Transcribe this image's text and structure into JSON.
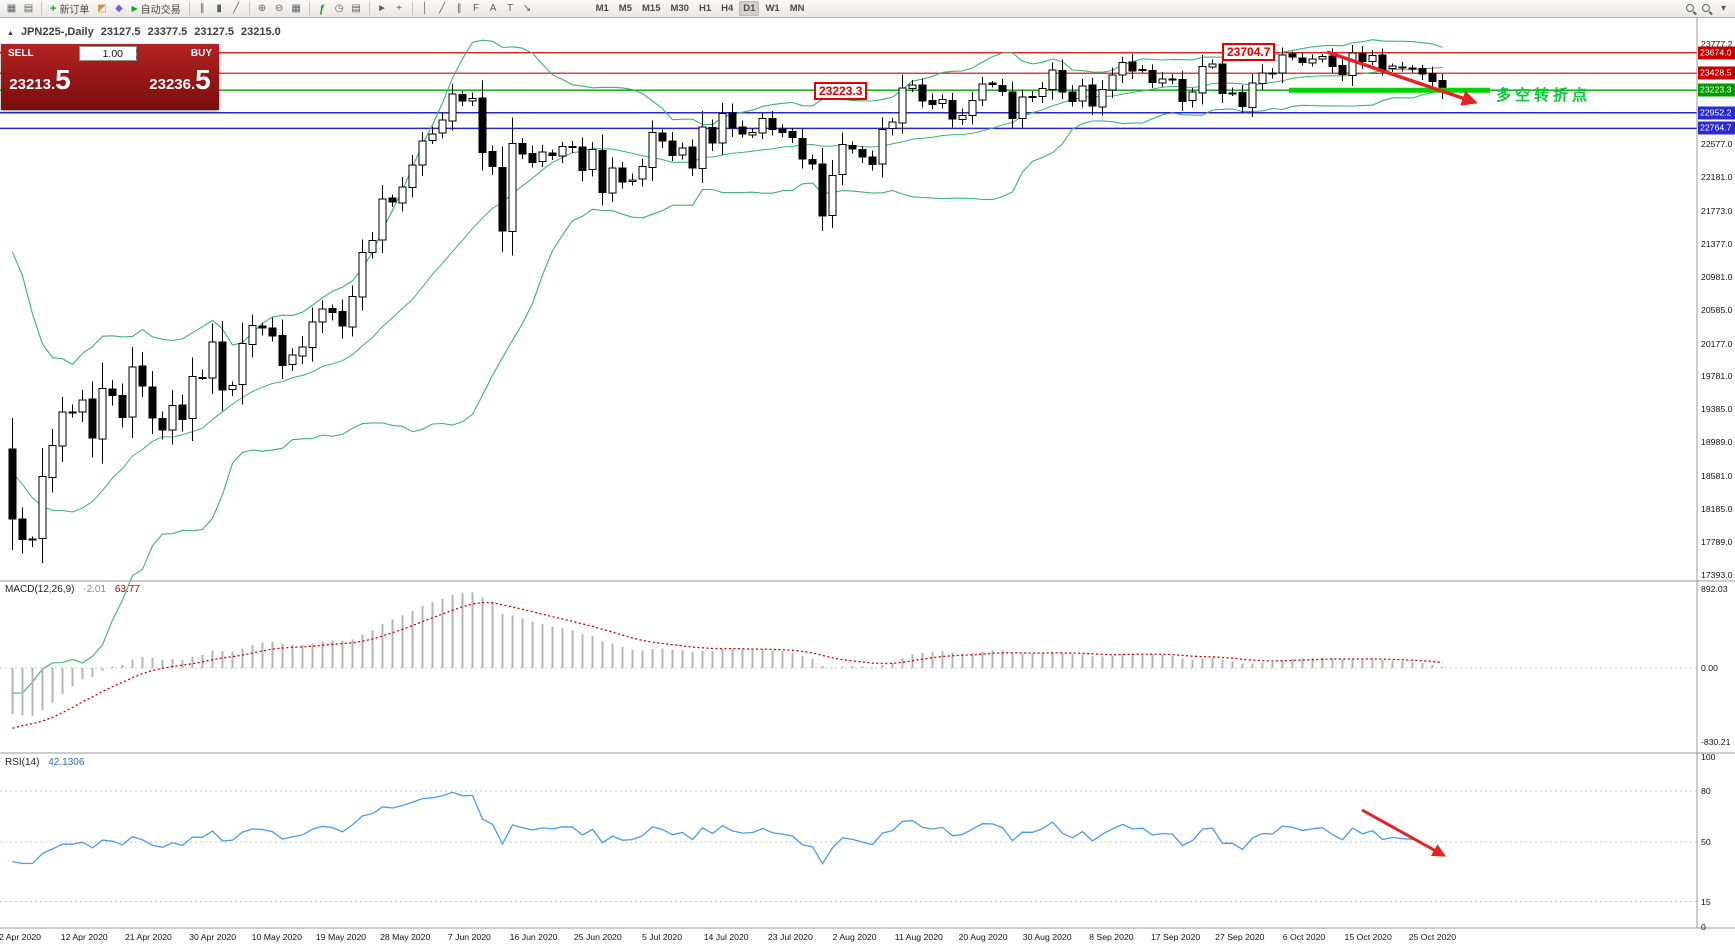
{
  "icons": {
    "new_chart": "▦",
    "profiles": "▤",
    "dropdown": "▾",
    "new_order_plus": "+",
    "alerts": "◩",
    "mql": "◆",
    "autotrade_play": "▶",
    "bar_chart": "∥",
    "candlestick": "▮",
    "line_chart": "╱",
    "zoom_in": "⊕",
    "zoom_out": "⊖",
    "tile_windows": "▦",
    "indicators": "ƒ",
    "period": "◷",
    "templates": "▤",
    "cursor": "►",
    "crosshair": "+",
    "vline": "│",
    "trendline": "╱",
    "channel": "∥",
    "fibonacci": "F",
    "text": "A",
    "label": "T",
    "arrows": "↘",
    "header_marker": "▲",
    "stepper_up": "▴",
    "stepper_down": "▾"
  },
  "toolbar": {
    "new_order_label": "新订单",
    "autotrade_label": "自动交易",
    "timeframes": [
      "M1",
      "M5",
      "M15",
      "M30",
      "H1",
      "H4",
      "D1",
      "W1",
      "MN"
    ],
    "active_timeframe": "D1"
  },
  "chart_header": {
    "symbol_period": "JPN225-,Daily",
    "open": "23127.5",
    "high": "23377.5",
    "low": "23127.5",
    "close": "23215.0"
  },
  "trade_panel": {
    "sell_label": "SELL",
    "buy_label": "BUY",
    "volume": "1.00",
    "sell_price": "23213.",
    "sell_price_big": "5",
    "buy_price": "23236.",
    "buy_price_big": "5"
  },
  "price_axis": {
    "ticks": [
      "23777.2",
      "22577.0",
      "22181.0",
      "21773.0",
      "21377.0",
      "20981.0",
      "20585.0",
      "20177.0",
      "19781.0",
      "19385.0",
      "18989.0",
      "18581.0",
      "18185.0",
      "17789.0",
      "17393.0"
    ],
    "badges": [
      {
        "label": "23674.0",
        "color": "#c40000"
      },
      {
        "label": "23428.5",
        "color": "#c40000"
      },
      {
        "label": "23223.3",
        "color": "#009a00"
      },
      {
        "label": "22952.2",
        "color": "#2a2ad0"
      },
      {
        "label": "22764.7",
        "color": "#2a2ad0"
      }
    ]
  },
  "macd_panel": {
    "name": "MACD(12,26,9)",
    "value_main": "-2.01",
    "value_signal": "63.77",
    "axis": [
      "892.03",
      "0.00",
      "-830.21"
    ]
  },
  "rsi_panel": {
    "name": "RSI(14)",
    "value": "42.1306",
    "axis": [
      "100",
      "80",
      "50",
      "15",
      "0"
    ],
    "levels": [
      80,
      50,
      15
    ]
  },
  "annotations": {
    "resistance_label": "23704.7",
    "support_label": "23223.3",
    "turning_point_text": "多空转折点"
  },
  "colors": {
    "up_candle": "#ffffff",
    "down_candle": "#000000",
    "candle_outline": "#000000",
    "bollinger": "#3CB371",
    "macd_histogram": "#b4b4b4",
    "macd_signal": "#d40000",
    "rsi_line": "#4a9ce8",
    "arrow_red": "#e82222",
    "turning_segment_green": "#00d400",
    "hline_red": "#d40000",
    "hline_green": "#00a000",
    "hline_blue": "#2626cc"
  },
  "chart_data": {
    "type": "candlestick",
    "symbol": "JPN225-",
    "period": "Daily",
    "current_bar": {
      "open": 23127.5,
      "high": 23377.5,
      "low": 23127.5,
      "close": 23215.0
    },
    "bid": 23213.5,
    "ask": 23236.5,
    "price_range_top": 24092,
    "price_range_bottom": 17321,
    "prehistory_closes": [
      21143,
      20749,
      20618,
      21103,
      20613,
      19868,
      19416,
      19698,
      18560,
      17431,
      17002,
      16553,
      17011,
      16888,
      18092,
      17334,
      18003,
      19546,
      18664,
      19085,
      18917
    ],
    "closes": [
      18065,
      17818,
      17820,
      18576,
      18950,
      19353,
      19346,
      19499,
      19043,
      19639,
      19551,
      19290,
      19897,
      19669,
      19281,
      19138,
      19429,
      19262,
      19783,
      19771,
      20194,
      19619,
      19675,
      20179,
      20391,
      20366,
      20267,
      19915,
      20037,
      20134,
      20433,
      20595,
      20552,
      20388,
      20741,
      21271,
      21419,
      21916,
      21878,
      22062,
      22326,
      22614,
      22696,
      22864,
      23178,
      23091,
      23125,
      22473,
      22305,
      21531,
      22582,
      22456,
      22355,
      22479,
      22437,
      22549,
      22534,
      22260,
      22512,
      21995,
      22288,
      22122,
      22146,
      22306,
      22714,
      22615,
      22439,
      22529,
      22291,
      22784,
      22587,
      22946,
      22770,
      22696,
      22717,
      22884,
      22751,
      22715,
      22657,
      22397,
      22339,
      21710,
      22195,
      22573,
      22514,
      22418,
      22330,
      22750,
      22843,
      23249,
      23289,
      23096,
      23051,
      23110,
      22880,
      22920,
      23100,
      23296,
      23290,
      23208,
      22882,
      23139,
      23138,
      23247,
      23465,
      23205,
      23089,
      23274,
      23032,
      23235,
      23406,
      23559,
      23454,
      23475,
      23319,
      23360,
      23346,
      23087,
      23204,
      23511,
      23539,
      23185,
      23185,
      23030,
      23312,
      23433,
      23423,
      23647,
      23620,
      23559,
      23601,
      23627,
      23507,
      23411,
      23671,
      23567,
      23639,
      23474,
      23516,
      23494,
      23485,
      23418,
      23331,
      23215
    ],
    "overlays": [
      {
        "type": "bollinger_bands",
        "period": 20,
        "deviation": 2
      }
    ],
    "indicators": [
      {
        "type": "MACD",
        "fast": 12,
        "slow": 26,
        "signal": 9,
        "main_value": -2.01,
        "signal_value": 63.77
      },
      {
        "type": "RSI",
        "period": 14,
        "value": 42.1306
      }
    ],
    "hlines": [
      {
        "price": 23674.0,
        "color": "#d40000",
        "width": 1.2
      },
      {
        "price": 23428.5,
        "color": "#d40000",
        "width": 1.2
      },
      {
        "price": 23223.3,
        "color": "#00a000",
        "width": 1.4
      },
      {
        "price": 22952.2,
        "color": "#2626cc",
        "width": 1.5
      },
      {
        "price": 22764.7,
        "color": "#2626cc",
        "width": 1.5
      }
    ],
    "date_labels": [
      "2 Apr 2020",
      "12 Apr 2020",
      "21 Apr 2020",
      "30 Apr 2020",
      "10 May 2020",
      "19 May 2020",
      "28 May 2020",
      "7 Jun 2020",
      "16 Jun 2020",
      "25 Jun 2020",
      "5 Jul 2020",
      "14 Jul 2020",
      "23 Jul 2020",
      "2 Aug 2020",
      "11 Aug 2020",
      "20 Aug 2020",
      "30 Aug 2020",
      "8 Sep 2020",
      "17 Sep 2020",
      "27 Sep 2020",
      "6 Oct 2020",
      "15 Oct 2020",
      "25 Oct 2020"
    ]
  }
}
